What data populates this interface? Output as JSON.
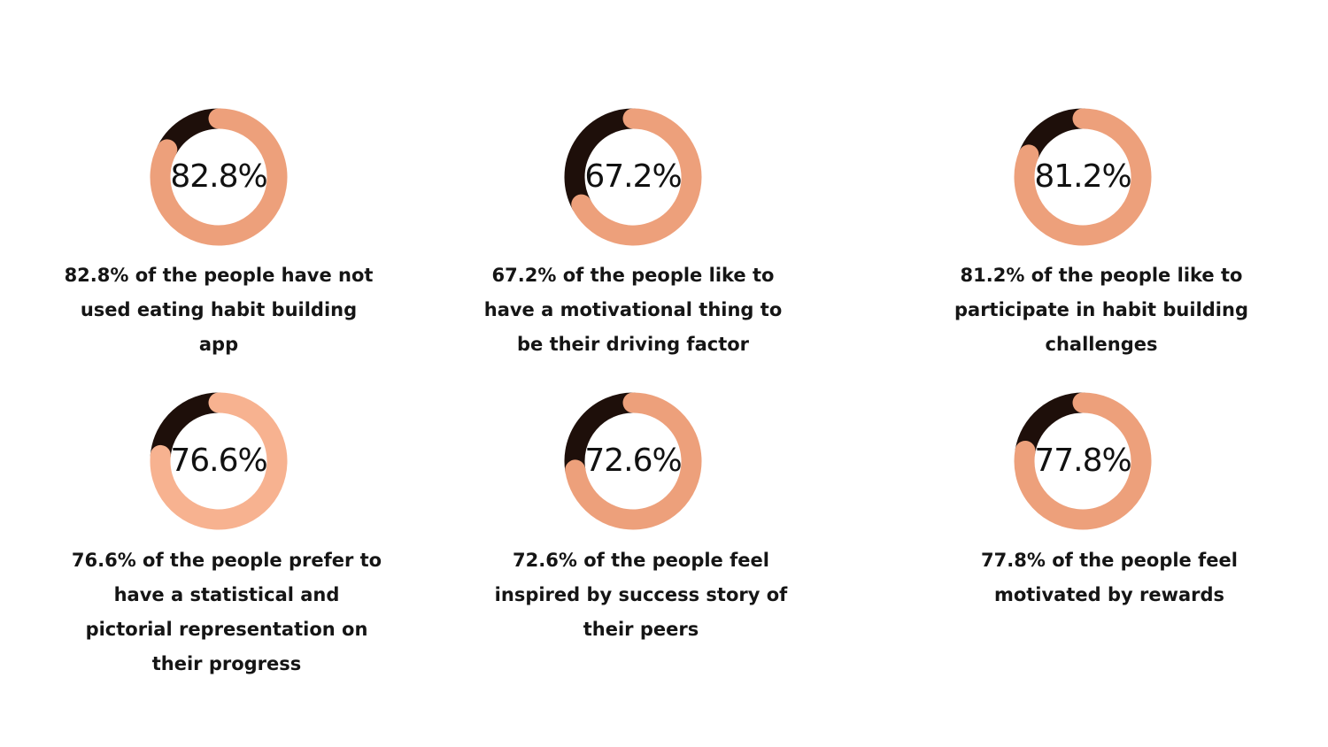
{
  "chart_data": [
    {
      "type": "pie",
      "values": [
        82.8,
        17.2
      ],
      "value_label": "82.8%",
      "caption": "82.8% of the people have not used eating habit building app",
      "colors": [
        "#EDA07B",
        "#1E0F0A"
      ]
    },
    {
      "type": "pie",
      "values": [
        67.2,
        32.8
      ],
      "value_label": "67.2%",
      "caption": "67.2% of the people like to have a motivational thing to be their driving factor",
      "colors": [
        "#EDA07B",
        "#1E0F0A"
      ]
    },
    {
      "type": "pie",
      "values": [
        81.2,
        18.8
      ],
      "value_label": "81.2%",
      "caption": "81.2% of the people like to participate in habit building challenges",
      "colors": [
        "#EDA07B",
        "#1E0F0A"
      ]
    },
    {
      "type": "pie",
      "values": [
        76.6,
        23.4
      ],
      "value_label": "76.6%",
      "caption": "76.6% of the people prefer to have a statistical and pictorial representation on their progress",
      "colors": [
        "#F7B290",
        "#1E0F0A"
      ]
    },
    {
      "type": "pie",
      "values": [
        72.6,
        27.4
      ],
      "value_label": "72.6%",
      "caption": "72.6% of the people feel inspired by success story of their peers",
      "colors": [
        "#EDA07B",
        "#1E0F0A"
      ]
    },
    {
      "type": "pie",
      "values": [
        77.8,
        22.2
      ],
      "value_label": "77.8%",
      "caption": "77.8% of the people feel motivated by rewards",
      "colors": [
        "#EDA07B",
        "#1E0F0A"
      ]
    }
  ]
}
